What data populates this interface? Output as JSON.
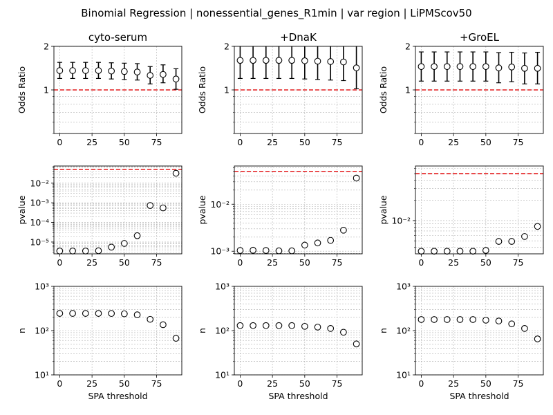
{
  "figure_title": "Binomial Regression | nonessential_genes_R1min | var region | LiPMScov50",
  "chart_data": [
    {
      "type": "scatter",
      "panel": "odds-ratio",
      "column": 0,
      "title": "cyto-serum",
      "xlabel": "",
      "ylabel": "Odds Ratio",
      "yscale": "log",
      "ylim": [
        0.5,
        2
      ],
      "xlim": [
        -4.5,
        94.5
      ],
      "yticks": [
        1,
        2
      ],
      "xticks": [
        0,
        25,
        50,
        75
      ],
      "reference_line": 1,
      "grid": true,
      "error_bars": true,
      "x": [
        0,
        10,
        20,
        30,
        40,
        50,
        60,
        70,
        80,
        90
      ],
      "y": [
        1.36,
        1.36,
        1.36,
        1.36,
        1.35,
        1.34,
        1.33,
        1.26,
        1.28,
        1.19
      ],
      "ci_low": [
        1.2,
        1.2,
        1.2,
        1.2,
        1.19,
        1.18,
        1.17,
        1.1,
        1.12,
        1.01
      ],
      "ci_high": [
        1.55,
        1.55,
        1.55,
        1.55,
        1.54,
        1.53,
        1.52,
        1.45,
        1.49,
        1.4
      ]
    },
    {
      "type": "scatter",
      "panel": "odds-ratio",
      "column": 1,
      "title": "+DnaK",
      "xlabel": "",
      "ylabel": "Odds Ratio",
      "yscale": "log",
      "ylim": [
        0.5,
        2
      ],
      "xlim": [
        -4.5,
        94.5
      ],
      "yticks": [
        1,
        2
      ],
      "xticks": [
        0,
        25,
        50,
        75
      ],
      "reference_line": 1,
      "grid": true,
      "error_bars": true,
      "x": [
        0,
        10,
        20,
        30,
        40,
        50,
        60,
        70,
        80,
        90
      ],
      "y": [
        1.6,
        1.6,
        1.6,
        1.6,
        1.6,
        1.59,
        1.58,
        1.57,
        1.56,
        1.42
      ],
      "ci_low": [
        1.2,
        1.2,
        1.2,
        1.2,
        1.2,
        1.19,
        1.18,
        1.17,
        1.16,
        1.02
      ],
      "ci_high": [
        2.3,
        2.3,
        2.3,
        2.3,
        2.3,
        2.28,
        2.26,
        2.24,
        2.22,
        2.05
      ]
    },
    {
      "type": "scatter",
      "panel": "odds-ratio",
      "column": 2,
      "title": "+GroEL",
      "xlabel": "",
      "ylabel": "Odds Ratio",
      "yscale": "log",
      "ylim": [
        0.5,
        2
      ],
      "xlim": [
        -4.5,
        94.5
      ],
      "yticks": [
        1,
        2
      ],
      "xticks": [
        0,
        25,
        50,
        75
      ],
      "reference_line": 1,
      "grid": true,
      "error_bars": true,
      "x": [
        0,
        10,
        20,
        30,
        40,
        50,
        60,
        70,
        80,
        90
      ],
      "y": [
        1.45,
        1.45,
        1.45,
        1.45,
        1.45,
        1.45,
        1.42,
        1.44,
        1.41,
        1.41
      ],
      "ci_low": [
        1.15,
        1.15,
        1.15,
        1.15,
        1.15,
        1.15,
        1.12,
        1.14,
        1.1,
        1.1
      ],
      "ci_high": [
        1.83,
        1.83,
        1.83,
        1.83,
        1.83,
        1.83,
        1.81,
        1.82,
        1.8,
        1.82
      ]
    },
    {
      "type": "scatter",
      "panel": "pvalue",
      "column": 0,
      "title": "",
      "xlabel": "",
      "ylabel": "pvalue",
      "yscale": "log",
      "ylim": [
        2.5e-06,
        0.075
      ],
      "xlim": [
        -4.5,
        94.5
      ],
      "yticks": [
        1e-05,
        0.0001,
        0.001,
        0.01
      ],
      "xticks": [
        0,
        25,
        50,
        75
      ],
      "reference_line": 0.05,
      "grid": true,
      "x": [
        0,
        10,
        20,
        30,
        40,
        50,
        60,
        70,
        80,
        90
      ],
      "y": [
        3.5e-06,
        3.5e-06,
        3.5e-06,
        3.6e-06,
        5.5e-06,
        8.5e-06,
        2.1e-05,
        0.00073,
        0.00055,
        0.032
      ]
    },
    {
      "type": "scatter",
      "panel": "pvalue",
      "column": 1,
      "title": "",
      "xlabel": "",
      "ylabel": "pvalue",
      "yscale": "log",
      "ylim": [
        0.00088,
        0.065
      ],
      "xlim": [
        -4.5,
        94.5
      ],
      "yticks": [
        0.001,
        0.01
      ],
      "xticks": [
        0,
        25,
        50,
        75
      ],
      "reference_line": 0.05,
      "grid": true,
      "x": [
        0,
        10,
        20,
        30,
        40,
        50,
        60,
        70,
        80,
        90
      ],
      "y": [
        0.00104,
        0.00105,
        0.00104,
        0.00102,
        0.00102,
        0.00135,
        0.0015,
        0.0017,
        0.0028,
        0.036
      ]
    },
    {
      "type": "scatter",
      "panel": "pvalue",
      "column": 2,
      "title": "",
      "xlabel": "",
      "ylabel": "pvalue",
      "yscale": "log",
      "ylim": [
        0.0032,
        0.065
      ],
      "xlim": [
        -4.5,
        94.5
      ],
      "yticks": [
        0.01
      ],
      "xticks": [
        0,
        25,
        50,
        75
      ],
      "reference_line": 0.05,
      "grid": true,
      "x": [
        0,
        10,
        20,
        30,
        40,
        50,
        60,
        70,
        80,
        90
      ],
      "y": [
        0.0035,
        0.0035,
        0.0035,
        0.0035,
        0.0035,
        0.0036,
        0.0049,
        0.0049,
        0.0058,
        0.0082
      ]
    },
    {
      "type": "scatter",
      "panel": "n",
      "column": 0,
      "title": "",
      "xlabel": "SPA threshold",
      "ylabel": "n",
      "yscale": "log",
      "ylim": [
        10,
        1000
      ],
      "xlim": [
        -4.5,
        94.5
      ],
      "yticks": [
        10,
        100,
        1000
      ],
      "xticks": [
        0,
        25,
        50,
        75
      ],
      "grid": true,
      "x": [
        0,
        10,
        20,
        30,
        40,
        50,
        60,
        70,
        80,
        90
      ],
      "y": [
        245,
        245,
        245,
        245,
        244,
        240,
        228,
        180,
        136,
        67
      ]
    },
    {
      "type": "scatter",
      "panel": "n",
      "column": 1,
      "title": "",
      "xlabel": "SPA threshold",
      "ylabel": "n",
      "yscale": "log",
      "ylim": [
        10,
        1000
      ],
      "xlim": [
        -4.5,
        94.5
      ],
      "yticks": [
        10,
        100,
        1000
      ],
      "xticks": [
        0,
        25,
        50,
        75
      ],
      "grid": true,
      "x": [
        0,
        10,
        20,
        30,
        40,
        50,
        60,
        70,
        80,
        90
      ],
      "y": [
        130,
        130,
        130,
        130,
        130,
        125,
        120,
        112,
        92,
        50
      ]
    },
    {
      "type": "scatter",
      "panel": "n",
      "column": 2,
      "title": "",
      "xlabel": "SPA threshold",
      "ylabel": "n",
      "yscale": "log",
      "ylim": [
        10,
        1000
      ],
      "xlim": [
        -4.5,
        94.5
      ],
      "yticks": [
        10,
        100,
        1000
      ],
      "xticks": [
        0,
        25,
        50,
        75
      ],
      "grid": true,
      "x": [
        0,
        10,
        20,
        30,
        40,
        50,
        60,
        70,
        80,
        90
      ],
      "y": [
        178,
        178,
        178,
        178,
        178,
        172,
        165,
        142,
        112,
        65
      ]
    }
  ],
  "colors": {
    "reference_line": "#e41a1c",
    "marker_edge": "#000000",
    "grid": "#b0b0b0"
  }
}
